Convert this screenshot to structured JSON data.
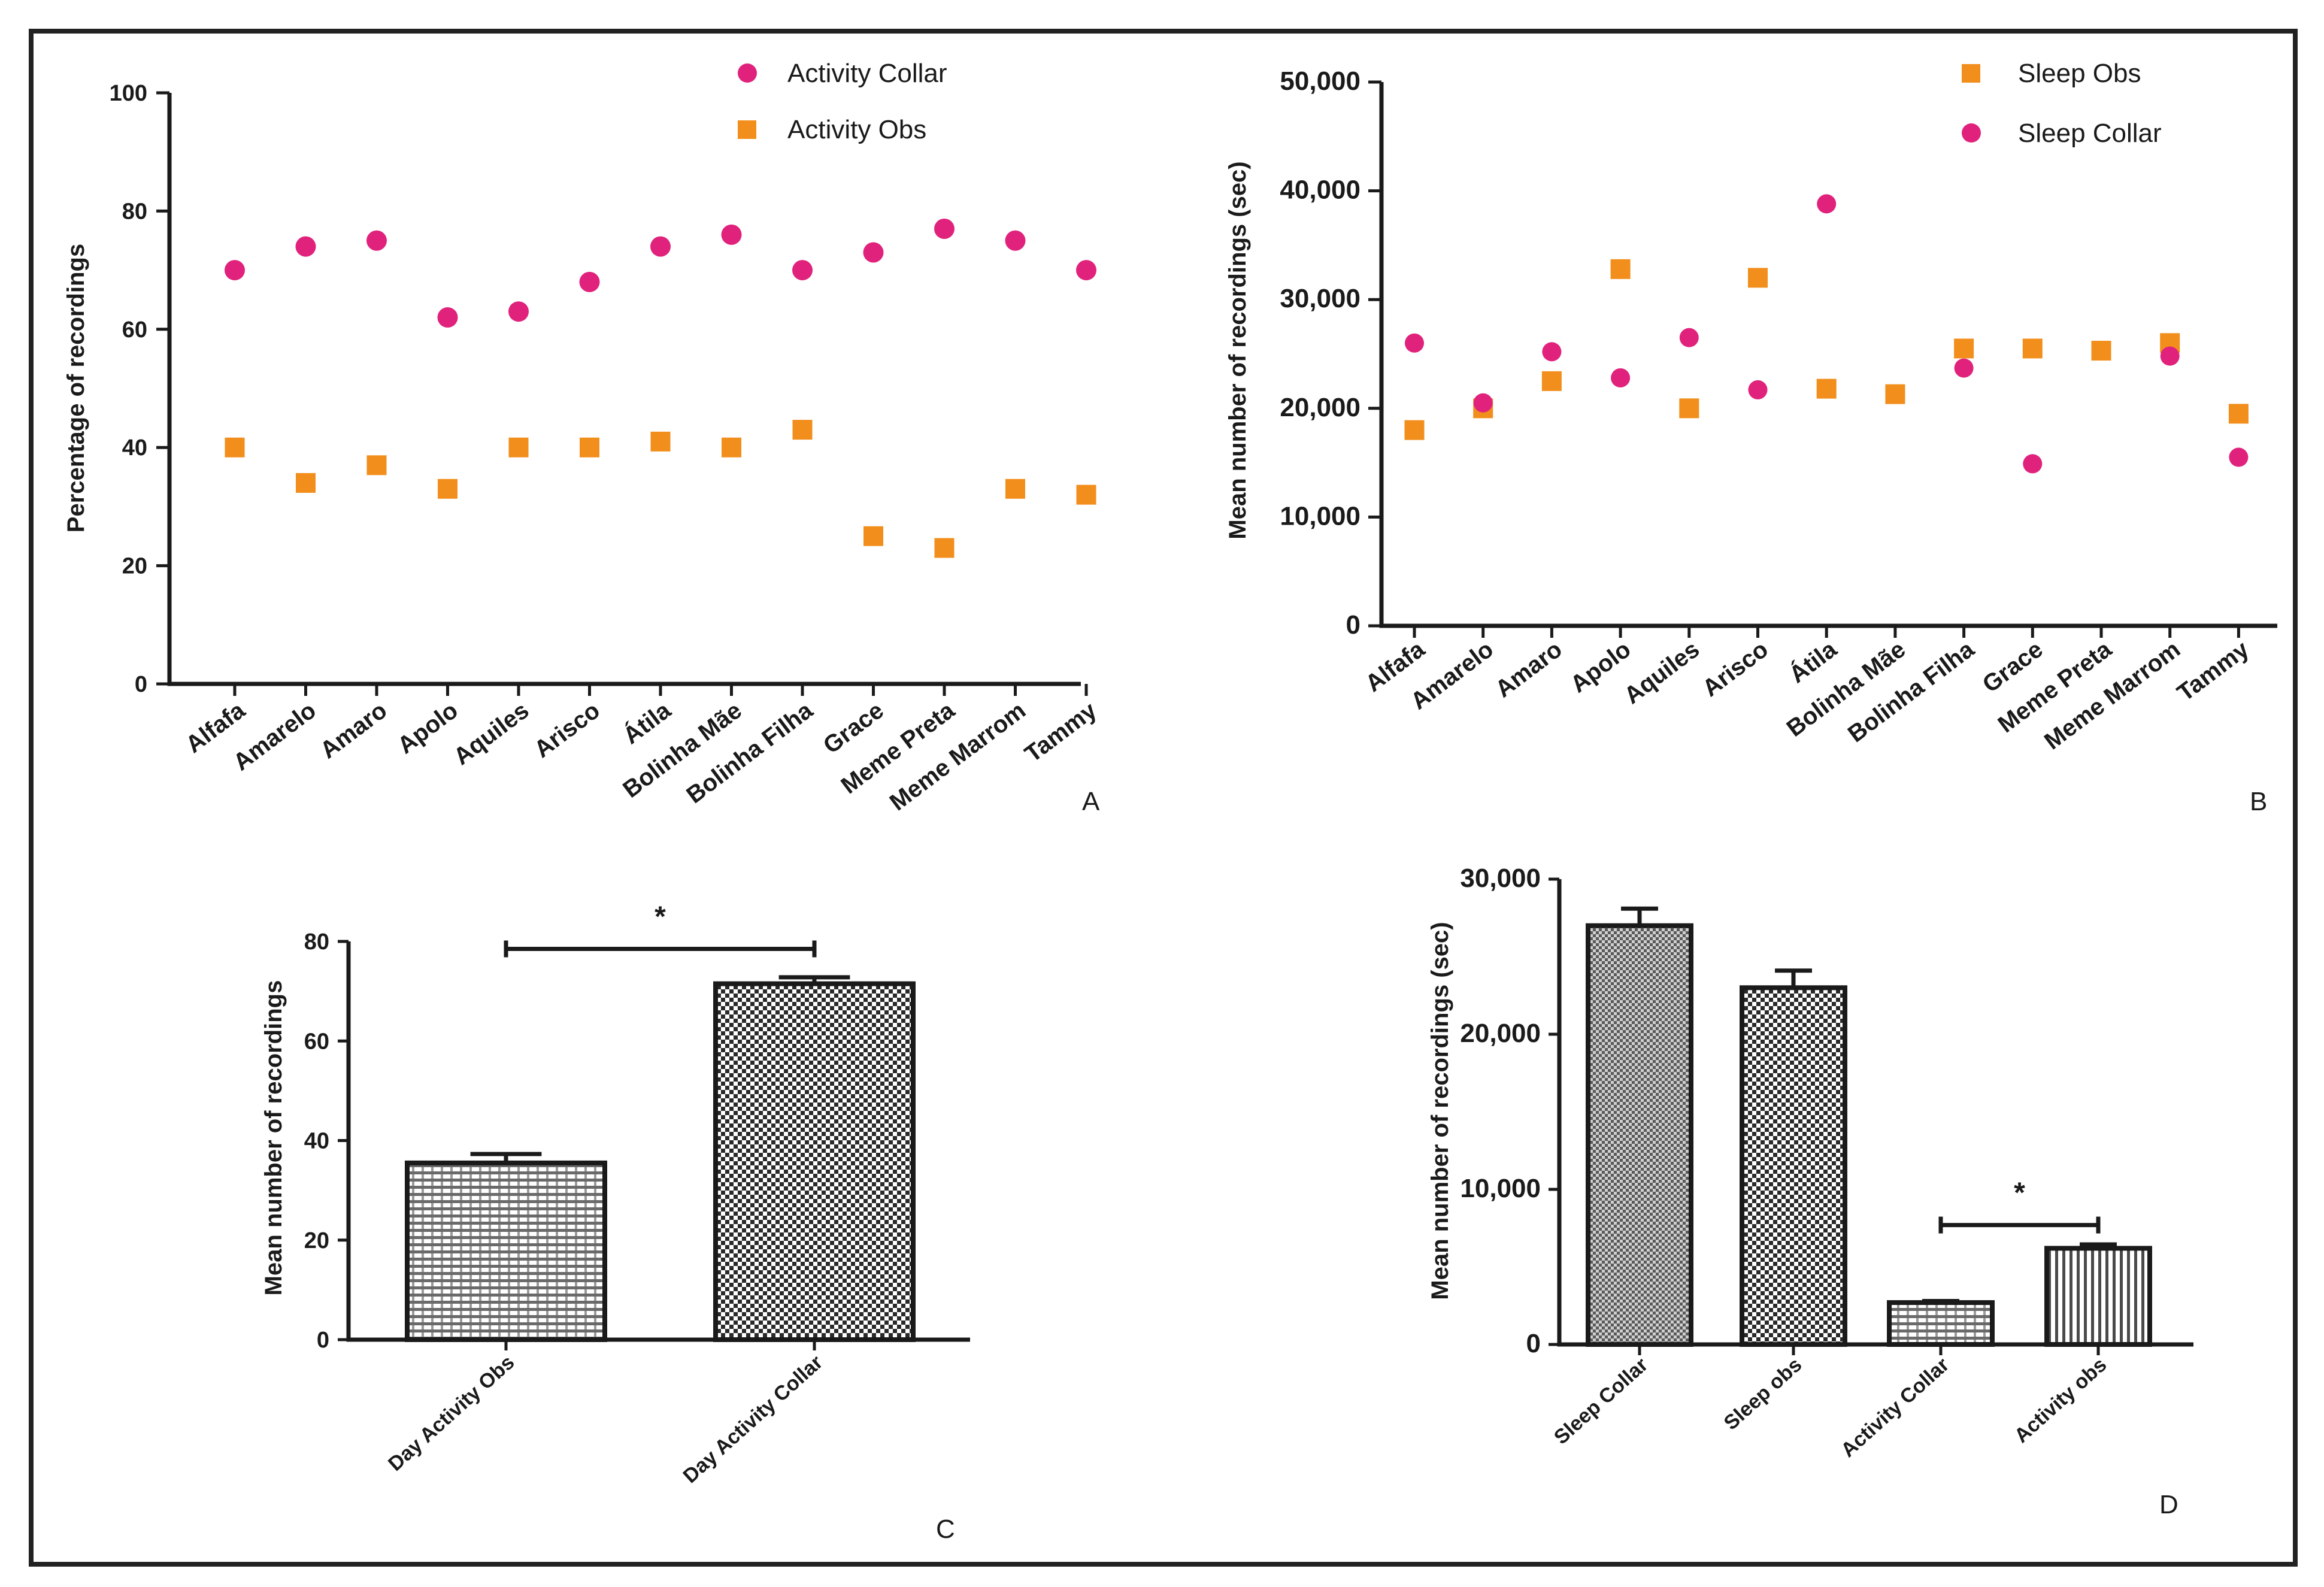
{
  "colors": {
    "circle": "#e0227c",
    "square": "#f28e1c",
    "ink": "#1a1a1a",
    "frame": "#222222"
  },
  "chart_data": [
    {
      "id": "A",
      "type": "scatter",
      "panel_label": "A",
      "ylabel": "Percentage of recordings",
      "ylim": [
        0,
        100
      ],
      "yticks": [
        0,
        20,
        40,
        60,
        80,
        100
      ],
      "ytick_labels": [
        "0",
        "20",
        "40",
        "60",
        "80",
        "100"
      ],
      "categories": [
        "Alfafa",
        "Amarelo",
        "Amaro",
        "Apolo",
        "Aquiles",
        "Arisco",
        "Átila",
        "Bolinha Mãe",
        "Bolinha Filha",
        "Grace",
        "Meme Preta",
        "Meme Marrom",
        "Tammy"
      ],
      "legend": [
        "Activity Collar",
        "Activity Obs"
      ],
      "series": [
        {
          "name": "Activity Collar",
          "marker": "circle",
          "values": [
            70,
            74,
            75,
            62,
            63,
            68,
            74,
            76,
            70,
            73,
            77,
            75,
            70
          ]
        },
        {
          "name": "Activity Obs",
          "marker": "square",
          "values": [
            40,
            34,
            37,
            33,
            40,
            40,
            41,
            40,
            43,
            25,
            23,
            33,
            32
          ]
        }
      ]
    },
    {
      "id": "B",
      "type": "scatter",
      "panel_label": "B",
      "ylabel": "Mean number of recordings (sec)",
      "ylim": [
        0,
        50000
      ],
      "yticks": [
        0,
        10000,
        20000,
        30000,
        40000,
        50000
      ],
      "ytick_labels": [
        "0",
        "10,000",
        "20,000",
        "30,000",
        "40,000",
        "50,000"
      ],
      "categories": [
        "Alfafa",
        "Amarelo",
        "Amaro",
        "Apolo",
        "Aquiles",
        "Arisco",
        "Átila",
        "Bolinha Mãe",
        "Bolinha Filha",
        "Grace",
        "Meme Preta",
        "Meme Marrom",
        "Tammy"
      ],
      "legend": [
        "Sleep Obs",
        "Sleep Collar"
      ],
      "series": [
        {
          "name": "Sleep Obs",
          "marker": "square",
          "values": [
            18000,
            20000,
            22500,
            32800,
            20000,
            32000,
            21800,
            21300,
            25500,
            25500,
            25300,
            26000,
            19500
          ]
        },
        {
          "name": "Sleep Collar",
          "marker": "circle",
          "values": [
            26000,
            20500,
            25200,
            22800,
            26500,
            21700,
            38800,
            null,
            23700,
            14900,
            null,
            24800,
            15500
          ]
        }
      ]
    },
    {
      "id": "C",
      "type": "bar",
      "panel_label": "C",
      "ylabel": "Mean number of recordings",
      "ylim": [
        0,
        80
      ],
      "yticks": [
        0,
        20,
        40,
        60,
        80
      ],
      "ytick_labels": [
        "0",
        "20",
        "40",
        "60",
        "80"
      ],
      "categories": [
        "Day Activity Obs",
        "Day Activity Collar"
      ],
      "values": [
        35.5,
        71.5
      ],
      "errors": [
        1.8,
        1.3
      ],
      "patterns": [
        "hatch-lines",
        "checker"
      ],
      "significance": {
        "from": 0,
        "to": 1,
        "label": "*",
        "y": 78.5
      }
    },
    {
      "id": "D",
      "type": "bar",
      "panel_label": "D",
      "ylabel": "Mean number of recordings (sec)",
      "ylim": [
        0,
        30000
      ],
      "yticks": [
        0,
        10000,
        20000,
        30000
      ],
      "ytick_labels": [
        "0",
        "10,000",
        "20,000",
        "30,000"
      ],
      "categories": [
        "Sleep Collar",
        "Sleep obs",
        "Activity Collar",
        "Activity obs"
      ],
      "values": [
        27000,
        23000,
        2700,
        6200
      ],
      "errors": [
        1100,
        1100,
        100,
        250
      ],
      "patterns": [
        "checker-fine",
        "checker",
        "hatch-lines",
        "vertical-lines"
      ],
      "significance": {
        "from": 2,
        "to": 3,
        "label": "*",
        "y": 7700
      }
    }
  ]
}
